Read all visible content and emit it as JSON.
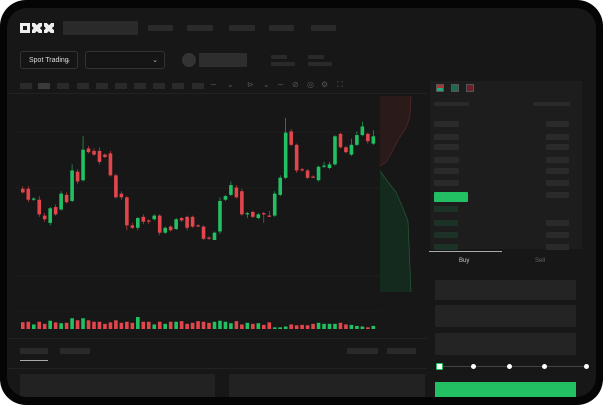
{
  "header": {
    "logo": "OKX"
  },
  "toolbar": {
    "market_dropdown": "Spot Trading",
    "pair_dropdown": ""
  },
  "trade": {
    "tabs": [
      {
        "label": "Buy",
        "active": true
      },
      {
        "label": "Sell",
        "active": false
      }
    ],
    "slider_value_percent": 0
  },
  "colors": {
    "up": "#22c063",
    "down": "#e0464c",
    "background": "#171717",
    "accent": "#22c063"
  },
  "icons": [
    "chevron-down-icon",
    "indicator-icon",
    "line-icon",
    "ruler-icon",
    "camera-icon",
    "gear-icon",
    "fullscreen-icon",
    "orderbook-both-icon",
    "orderbook-bids-icon",
    "orderbook-asks-icon"
  ],
  "chart_data": {
    "type": "candlestick",
    "title": "",
    "xlabel": "",
    "ylabel": "",
    "grid": true,
    "candles": [
      [
        42,
        44,
        38,
        39
      ],
      [
        42,
        44,
        31,
        33
      ],
      [
        33,
        35,
        32,
        34
      ],
      [
        33,
        36,
        19,
        21
      ],
      [
        20,
        22,
        15,
        17
      ],
      [
        14,
        27,
        12,
        26
      ],
      [
        27,
        29,
        20,
        21
      ],
      [
        25,
        40,
        24,
        38
      ],
      [
        37,
        39,
        30,
        31
      ],
      [
        32,
        62,
        31,
        57
      ],
      [
        56,
        58,
        46,
        48
      ],
      [
        49,
        85,
        48,
        74
      ],
      [
        75,
        77,
        71,
        72
      ],
      [
        73,
        75,
        69,
        70
      ],
      [
        73,
        76,
        62,
        64
      ],
      [
        70,
        71,
        67,
        68
      ],
      [
        71,
        73,
        52,
        53
      ],
      [
        53,
        54,
        34,
        35
      ],
      [
        38,
        40,
        33,
        35
      ],
      [
        35,
        36,
        8,
        12
      ],
      [
        12,
        14,
        9,
        10
      ],
      [
        10,
        19,
        8,
        18
      ],
      [
        19,
        21,
        13,
        15
      ],
      [
        16,
        17,
        13,
        15
      ],
      [
        17,
        21,
        16,
        20
      ],
      [
        20,
        21,
        4,
        6
      ],
      [
        6,
        11,
        5,
        10
      ],
      [
        11,
        12,
        7,
        8
      ],
      [
        9,
        18,
        8,
        17
      ],
      [
        18,
        19,
        15,
        16
      ],
      [
        19,
        20,
        8,
        10
      ],
      [
        19,
        20,
        10,
        11
      ],
      [
        12,
        13,
        11,
        11
      ],
      [
        11,
        12,
        0,
        1
      ],
      [
        2,
        3,
        0,
        1
      ],
      [
        0,
        7,
        0,
        6
      ],
      [
        7,
        35,
        5,
        32
      ],
      [
        33,
        37,
        32,
        36
      ],
      [
        37,
        48,
        36,
        45
      ],
      [
        43,
        45,
        34,
        35
      ],
      [
        40,
        42,
        20,
        21
      ],
      [
        21,
        23,
        18,
        22
      ],
      [
        23,
        24,
        18,
        19
      ],
      [
        18,
        22,
        17,
        21
      ],
      [
        22,
        23,
        14,
        21
      ],
      [
        20,
        24,
        19,
        19
      ],
      [
        20,
        40,
        19,
        38
      ],
      [
        37,
        53,
        36,
        51
      ],
      [
        51,
        100,
        50,
        88
      ],
      [
        89,
        91,
        77,
        78
      ],
      [
        78,
        79,
        55,
        57
      ],
      [
        58,
        59,
        56,
        57
      ],
      [
        57,
        58,
        50,
        51
      ],
      [
        52,
        53,
        51,
        51
      ],
      [
        49,
        61,
        48,
        60
      ],
      [
        61,
        64,
        59,
        61
      ],
      [
        59,
        64,
        58,
        62
      ],
      [
        62,
        86,
        61,
        85
      ],
      [
        87,
        88,
        75,
        76
      ],
      [
        76,
        77,
        71,
        72
      ],
      [
        70,
        83,
        69,
        78
      ],
      [
        78,
        89,
        77,
        86
      ],
      [
        86,
        97,
        85,
        93
      ],
      [
        87,
        88,
        79,
        81
      ],
      [
        79,
        90,
        78,
        85
      ]
    ],
    "volume": [
      33,
      35,
      22,
      35,
      25,
      40,
      32,
      28,
      30,
      52,
      42,
      52,
      42,
      35,
      35,
      25,
      32,
      42,
      30,
      35,
      30,
      58,
      35,
      35,
      22,
      35,
      25,
      35,
      35,
      38,
      25,
      30,
      38,
      35,
      30,
      35,
      40,
      35,
      28,
      38,
      22,
      30,
      25,
      28,
      20,
      32,
      8,
      8,
      12,
      22,
      18,
      20,
      18,
      25,
      30,
      25,
      25,
      25,
      30,
      22,
      20,
      15,
      12,
      8,
      15
    ]
  }
}
